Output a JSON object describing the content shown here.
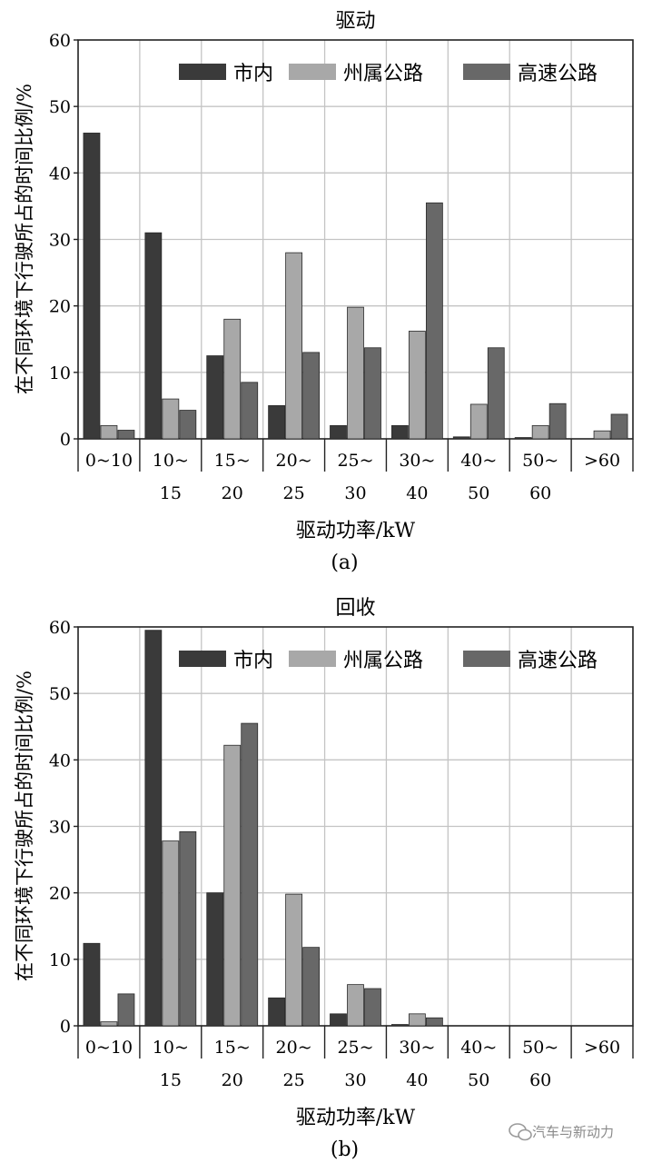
{
  "chart_data": [
    {
      "type": "bar",
      "title": "驱动",
      "subtitle": "(a)",
      "xlabel": "驱动功率/kW",
      "ylabel": "在不同环境下行驶所占的时间比例/%",
      "ylim": [
        0,
        60
      ],
      "yticks": [
        "0",
        "10",
        "20",
        "30",
        "40",
        "50",
        "60"
      ],
      "grid": true,
      "legend": "top-right",
      "categories": [
        [
          "0~10"
        ],
        [
          "10~",
          "15"
        ],
        [
          "15~",
          "20"
        ],
        [
          "20~",
          "25"
        ],
        [
          "25~",
          "30"
        ],
        [
          "30~",
          "40"
        ],
        [
          "40~",
          "50"
        ],
        [
          "50~",
          "60"
        ],
        [
          ">60"
        ]
      ],
      "series": [
        {
          "name": "市内",
          "color": "#3a3a3a",
          "values": [
            46,
            31,
            12.5,
            5,
            2,
            2,
            0.3,
            0.2,
            0
          ]
        },
        {
          "name": "州属公路",
          "color": "#a8a8a8",
          "values": [
            2,
            6,
            18,
            28,
            19.8,
            16.2,
            5.2,
            2,
            1.2
          ]
        },
        {
          "name": "高速公路",
          "color": "#686868",
          "values": [
            1.3,
            4.3,
            8.5,
            13,
            13.7,
            35.5,
            13.7,
            5.3,
            3.7
          ]
        }
      ]
    },
    {
      "type": "bar",
      "title": "回收",
      "subtitle": "(b)",
      "xlabel": "驱动功率/kW",
      "ylabel": "在不同环境下行驶所占的时间比例/%",
      "ylim": [
        0,
        60
      ],
      "yticks": [
        "0",
        "10",
        "20",
        "30",
        "40",
        "50",
        "60"
      ],
      "grid": true,
      "legend": "top-right",
      "categories": [
        [
          "0~10"
        ],
        [
          "10~",
          "15"
        ],
        [
          "15~",
          "20"
        ],
        [
          "20~",
          "25"
        ],
        [
          "25~",
          "30"
        ],
        [
          "30~",
          "40"
        ],
        [
          "40~",
          "50"
        ],
        [
          "50~",
          "60"
        ],
        [
          ">60"
        ]
      ],
      "series": [
        {
          "name": "市内",
          "color": "#3a3a3a",
          "values": [
            12.4,
            59.5,
            20,
            4.2,
            1.8,
            0.2,
            0,
            0,
            0
          ]
        },
        {
          "name": "州属公路",
          "color": "#a8a8a8",
          "values": [
            0.6,
            27.8,
            42.2,
            19.8,
            6.2,
            1.8,
            0,
            0,
            0
          ]
        },
        {
          "name": "高速公路",
          "color": "#686868",
          "values": [
            4.8,
            29.2,
            45.5,
            11.8,
            5.6,
            1.2,
            0,
            0,
            0
          ]
        }
      ]
    }
  ],
  "watermark": "汽车与新动力"
}
